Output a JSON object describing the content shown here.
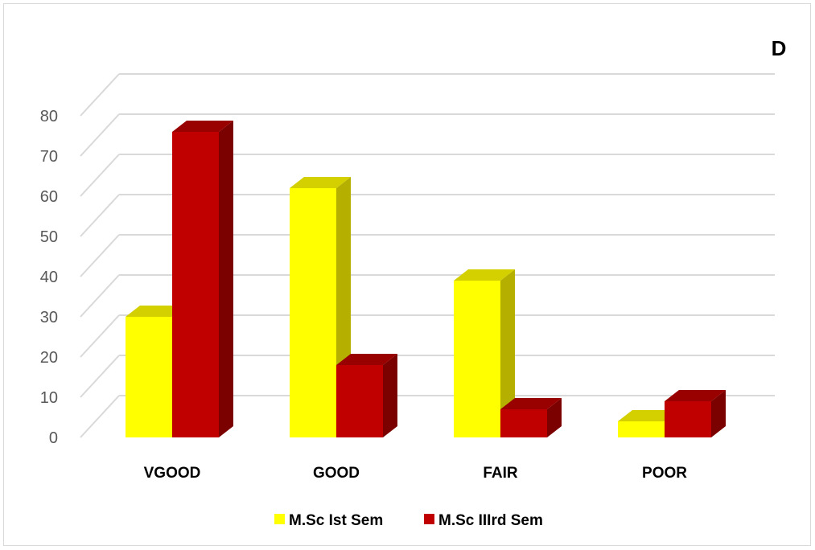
{
  "panel_label": "D",
  "chart_data": {
    "type": "bar",
    "categories": [
      "VGOOD",
      "GOOD",
      "FAIR",
      "POOR"
    ],
    "series": [
      {
        "name": "M.Sc Ist Sem",
        "values": [
          30,
          62,
          39,
          4
        ],
        "color": "#ffff00",
        "side_color": "#b5b000",
        "top_color": "#d4d000"
      },
      {
        "name": "M.Sc IIIrd Sem",
        "values": [
          76,
          18,
          7,
          9
        ],
        "color": "#c00000",
        "side_color": "#7b0000",
        "top_color": "#990000"
      }
    ],
    "y_ticks": [
      0,
      10,
      20,
      30,
      40,
      50,
      60,
      70,
      80
    ],
    "ylim": [
      0,
      85
    ],
    "grid": true,
    "legend_position": "bottom",
    "title": "",
    "xlabel": "",
    "ylabel": ""
  }
}
